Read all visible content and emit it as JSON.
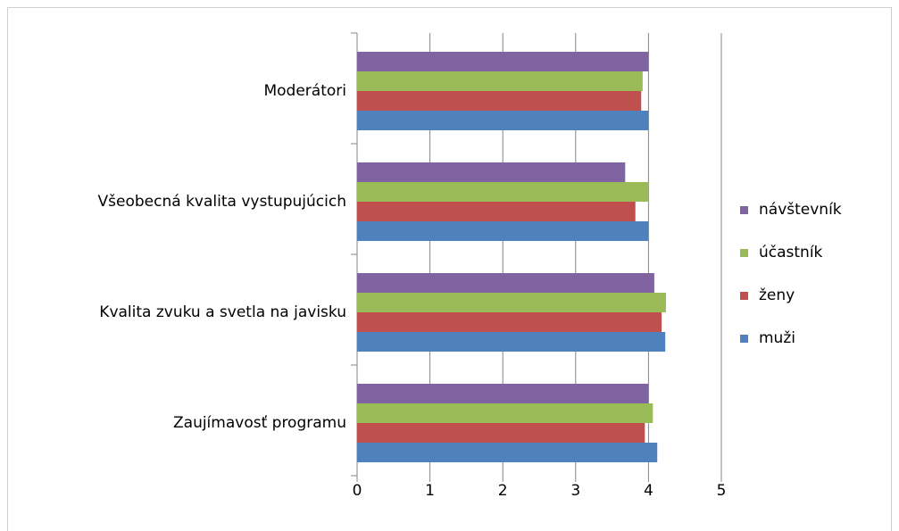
{
  "chart_data": {
    "type": "bar",
    "orientation": "horizontal",
    "categories": [
      "Zaujímavosť programu",
      "Kvalita zvuku a svetla na javisku",
      "Všeobecná kvalita vystupujúcich",
      "Moderátori"
    ],
    "series": [
      {
        "name": "muži",
        "color": "#4f81bd",
        "values": [
          4.12,
          4.23,
          4.0,
          4.0
        ]
      },
      {
        "name": "ženy",
        "color": "#c0504d",
        "values": [
          3.95,
          4.18,
          3.82,
          3.9
        ]
      },
      {
        "name": "účastník",
        "color": "#9bbb59",
        "values": [
          4.06,
          4.24,
          4.0,
          3.92
        ]
      },
      {
        "name": "návštevník",
        "color": "#8064a2",
        "values": [
          4.0,
          4.08,
          3.68,
          4.0
        ]
      }
    ],
    "xlim": [
      0,
      5
    ],
    "xticks": [
      0,
      1,
      2,
      3,
      4,
      5
    ],
    "grid": true,
    "legend": "right"
  }
}
